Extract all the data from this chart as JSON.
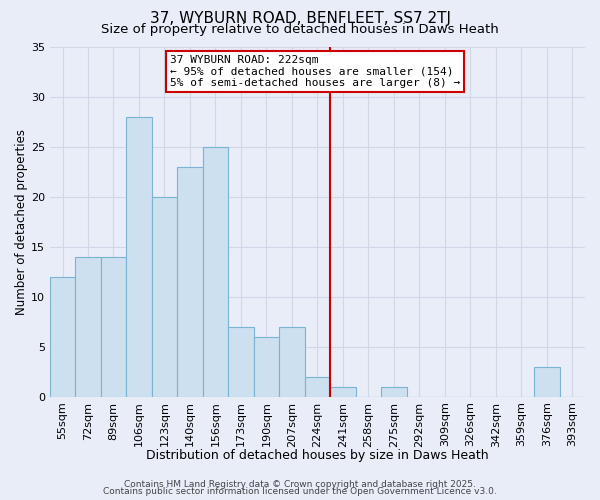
{
  "title": "37, WYBURN ROAD, BENFLEET, SS7 2TJ",
  "subtitle": "Size of property relative to detached houses in Daws Heath",
  "xlabel": "Distribution of detached houses by size in Daws Heath",
  "ylabel": "Number of detached properties",
  "categories": [
    "55sqm",
    "72sqm",
    "89sqm",
    "106sqm",
    "123sqm",
    "140sqm",
    "156sqm",
    "173sqm",
    "190sqm",
    "207sqm",
    "224sqm",
    "241sqm",
    "258sqm",
    "275sqm",
    "292sqm",
    "309sqm",
    "326sqm",
    "342sqm",
    "359sqm",
    "376sqm",
    "393sqm"
  ],
  "values": [
    12,
    14,
    14,
    28,
    20,
    23,
    25,
    7,
    6,
    7,
    2,
    1,
    0,
    1,
    0,
    0,
    0,
    0,
    0,
    3,
    0
  ],
  "bar_color": "#cce0f0",
  "bar_edge_color": "#7ab3d4",
  "red_line_x": 10.5,
  "annotation_text": "37 WYBURN ROAD: 222sqm\n← 95% of detached houses are smaller (154)\n5% of semi-detached houses are larger (8) →",
  "annotation_box_color": "#ffffff",
  "annotation_box_edge": "#cc0000",
  "red_line_color": "#cc0000",
  "ylim": [
    0,
    35
  ],
  "yticks": [
    0,
    5,
    10,
    15,
    20,
    25,
    30,
    35
  ],
  "grid_color": "#d0d8e8",
  "background_color": "#e8edf8",
  "footer_line1": "Contains HM Land Registry data © Crown copyright and database right 2025.",
  "footer_line2": "Contains public sector information licensed under the Open Government Licence v3.0.",
  "title_fontsize": 11,
  "subtitle_fontsize": 9.5,
  "xlabel_fontsize": 9,
  "ylabel_fontsize": 8.5,
  "tick_fontsize": 8,
  "footer_fontsize": 6.5,
  "annotation_fontsize": 8
}
